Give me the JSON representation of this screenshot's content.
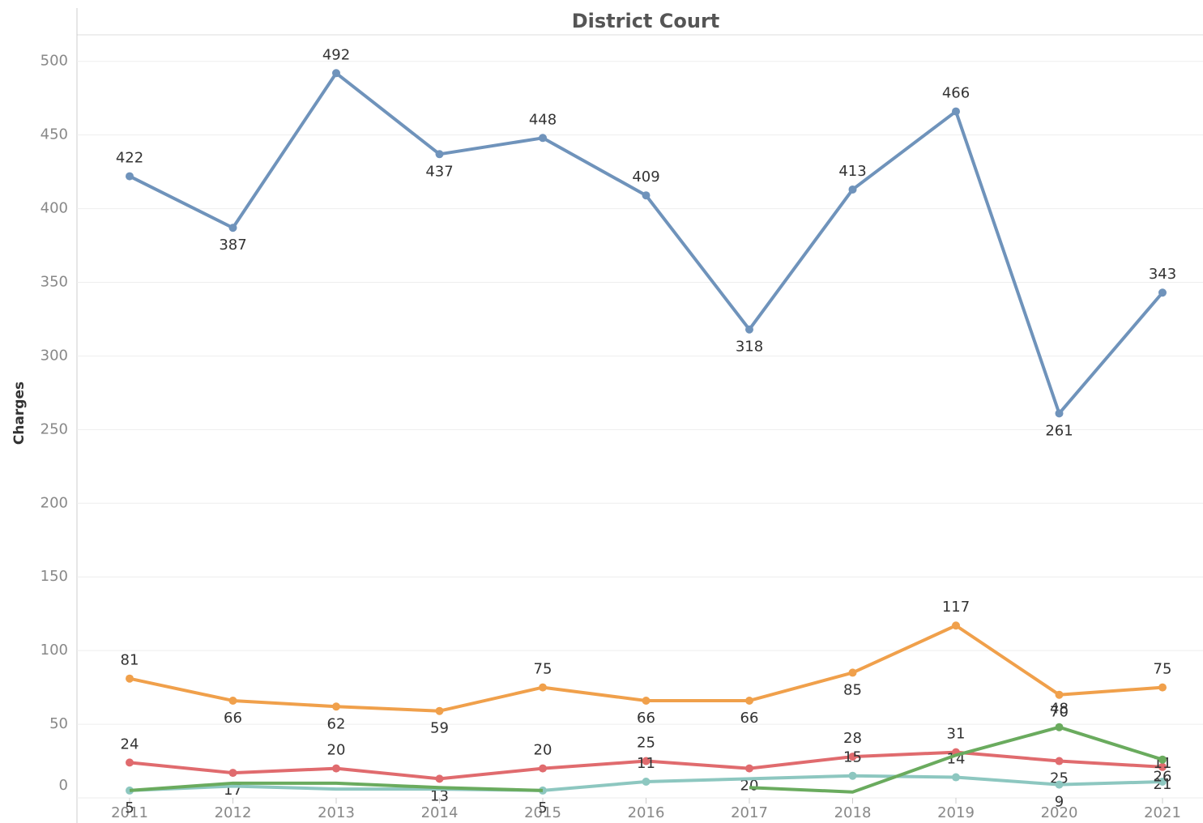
{
  "chart_data": {
    "type": "line",
    "title": "District Court",
    "y_label": "Charges",
    "categories": [
      "2011",
      "2012",
      "2013",
      "2014",
      "2015",
      "2016",
      "2017",
      "2018",
      "2019",
      "2020",
      "2021"
    ],
    "ylim": [
      0,
      518
    ],
    "yticks": [
      0,
      50,
      100,
      150,
      200,
      250,
      300,
      350,
      400,
      450,
      500
    ],
    "grid": true,
    "series": [
      {
        "color": "#6f93bb",
        "values": [
          422,
          387,
          492,
          437,
          448,
          409,
          318,
          413,
          466,
          261,
          343
        ]
      },
      {
        "color": "#f0a04b",
        "values": [
          81,
          66,
          62,
          59,
          75,
          66,
          66,
          85,
          117,
          70,
          75
        ]
      },
      {
        "color": "#e06b6e",
        "values": [
          24,
          17,
          20,
          13,
          20,
          25,
          20,
          28,
          31,
          25,
          21
        ]
      },
      {
        "color": "#8dc7c0",
        "values": [
          5,
          8,
          6,
          6,
          5,
          11,
          13,
          15,
          14,
          9,
          11
        ],
        "value_labels": [
          5,
          null,
          null,
          null,
          5,
          11,
          null,
          15,
          14,
          9,
          11
        ]
      },
      {
        "color": "#6aab5e",
        "values": [
          5,
          10,
          10,
          7,
          5,
          null,
          7,
          4,
          29,
          48,
          26
        ],
        "value_labels": [
          null,
          null,
          null,
          null,
          null,
          null,
          null,
          null,
          null,
          48,
          26
        ]
      }
    ]
  }
}
